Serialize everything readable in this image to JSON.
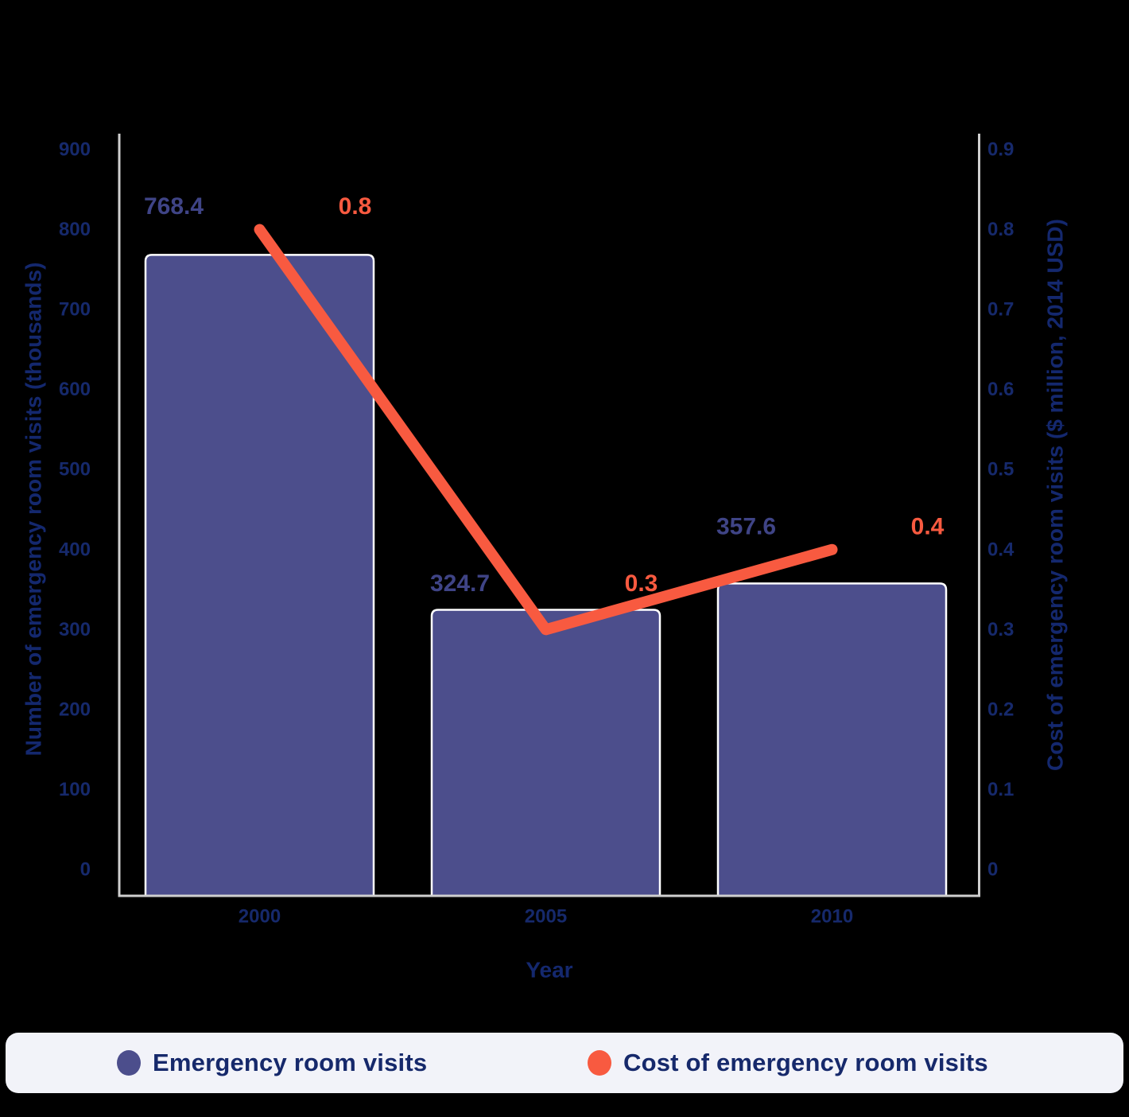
{
  "chart_data": {
    "type": "bar",
    "subtype": "combo-bar-line-dual-axis",
    "categories": [
      "2000",
      "2005",
      "2010"
    ],
    "series": [
      {
        "name": "Emergency room visits",
        "type": "bar",
        "axis": "left",
        "values": [
          768.4,
          324.7,
          357.6
        ],
        "data_labels": [
          "768.4",
          "324.7",
          "357.6"
        ],
        "color": "#4C4E8C"
      },
      {
        "name": "Cost of emergency room visits",
        "type": "line",
        "axis": "right",
        "values": [
          0.8,
          0.3,
          0.4
        ],
        "data_labels": [
          "0.8",
          "0.3",
          "0.4"
        ],
        "color": "#F85A40"
      }
    ],
    "xlabel": "Year",
    "left_axis": {
      "label": "Number of emergency room visits (thousands)",
      "min": 0,
      "max": 900,
      "ticks": [
        "900",
        "800",
        "700",
        "600",
        "500",
        "400",
        "300",
        "200",
        "100",
        "0"
      ]
    },
    "right_axis": {
      "label": "Cost of emergency room visits ($ million, 2014 USD)",
      "min": 0,
      "max": 0.9,
      "ticks": [
        "0.9",
        "0.8",
        "0.7",
        "0.6",
        "0.5",
        "0.4",
        "0.3",
        "0.2",
        "0.1",
        "0"
      ]
    },
    "grid": false,
    "legend_position": "bottom"
  },
  "colors": {
    "background": "#000000",
    "bar_fill": "#4C4E8C",
    "bar_stroke": "#FFFFFF",
    "line_stroke": "#F85A40",
    "axis_line": "#CFCFCF",
    "tick_text": "#16296B",
    "axis_title_text": "#14286E",
    "bar_label_text": "#3F4486",
    "line_label_text": "#F85A40",
    "legend_bg": "#F2F3F9",
    "legend_text": "#16296B"
  }
}
